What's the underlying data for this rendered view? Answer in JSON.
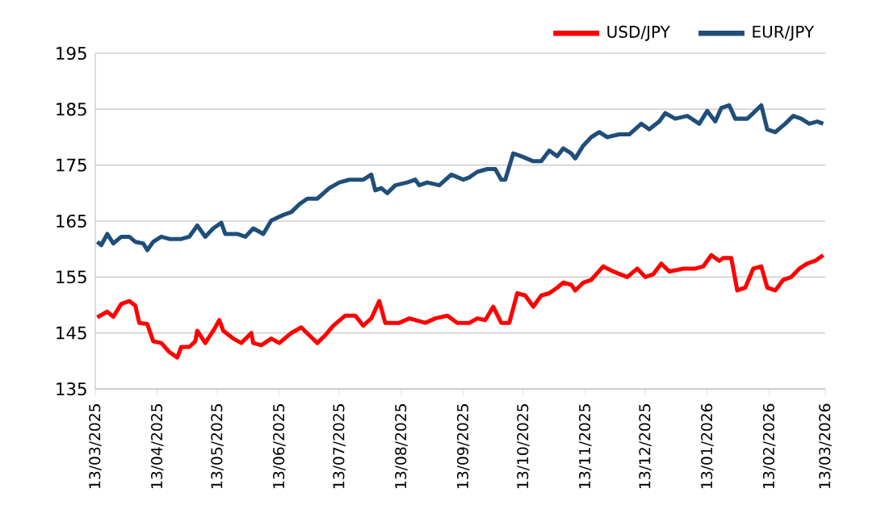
{
  "chart_data": {
    "type": "line",
    "xlim": [
      "2025-03-13",
      "2026-03-13"
    ],
    "xticks": [
      {
        "value": "2025-03-13",
        "label": "13/03/2025"
      },
      {
        "value": "2025-04-13",
        "label": "13/04/2025"
      },
      {
        "value": "2025-05-13",
        "label": "13/05/2025"
      },
      {
        "value": "2025-06-13",
        "label": "13/06/2025"
      },
      {
        "value": "2025-07-13",
        "label": "13/07/2025"
      },
      {
        "value": "2025-08-13",
        "label": "13/08/2025"
      },
      {
        "value": "2025-09-13",
        "label": "13/09/2025"
      },
      {
        "value": "2025-10-13",
        "label": "13/10/2025"
      },
      {
        "value": "2025-11-13",
        "label": "13/11/2025"
      },
      {
        "value": "2025-12-13",
        "label": "13/12/2025"
      },
      {
        "value": "2026-01-13",
        "label": "13/01/2026"
      },
      {
        "value": "2026-02-13",
        "label": "13/02/2026"
      },
      {
        "value": "2026-03-13",
        "label": "13/03/2026"
      }
    ],
    "ylim": [
      135,
      195
    ],
    "yticks": [
      135,
      145,
      155,
      165,
      175,
      185,
      195
    ],
    "grid": "y",
    "legend": "top right",
    "series": [
      {
        "name": "USD/JPY",
        "color": "#ff0000",
        "x": [
          "2025-03-14",
          "2025-03-19",
          "2025-03-22",
          "2025-03-26",
          "2025-03-30",
          "2025-04-02",
          "2025-04-04",
          "2025-04-08",
          "2025-04-11",
          "2025-04-15",
          "2025-04-19",
          "2025-04-23",
          "2025-04-25",
          "2025-04-29",
          "2025-05-02",
          "2025-05-03",
          "2025-05-07",
          "2025-05-11",
          "2025-05-14",
          "2025-05-16",
          "2025-05-21",
          "2025-05-25",
          "2025-05-30",
          "2025-05-31",
          "2025-06-04",
          "2025-06-09",
          "2025-06-13",
          "2025-06-19",
          "2025-06-24",
          "2025-06-28",
          "2025-07-02",
          "2025-07-06",
          "2025-07-10",
          "2025-07-16",
          "2025-07-21",
          "2025-07-25",
          "2025-07-29",
          "2025-08-02",
          "2025-08-05",
          "2025-08-12",
          "2025-08-17",
          "2025-08-25",
          "2025-08-30",
          "2025-09-05",
          "2025-09-10",
          "2025-09-16",
          "2025-09-20",
          "2025-09-24",
          "2025-09-28",
          "2025-10-02",
          "2025-10-06",
          "2025-10-10",
          "2025-10-14",
          "2025-10-18",
          "2025-10-22",
          "2025-10-26",
          "2025-10-30",
          "2025-11-02",
          "2025-11-06",
          "2025-11-08",
          "2025-11-12",
          "2025-11-16",
          "2025-11-22",
          "2025-11-27",
          "2025-12-04",
          "2025-12-09",
          "2025-12-13",
          "2025-12-17",
          "2025-12-21",
          "2025-12-25",
          "2026-01-01",
          "2026-01-07",
          "2026-01-11",
          "2026-01-15",
          "2026-01-19",
          "2026-01-21",
          "2026-01-25",
          "2026-01-28",
          "2026-02-01",
          "2026-02-05",
          "2026-02-09",
          "2026-02-12",
          "2026-02-16",
          "2026-02-20",
          "2026-02-24",
          "2026-02-28",
          "2026-03-04",
          "2026-03-08",
          "2026-03-12"
        ],
        "values": [
          147.8,
          148.8,
          147.9,
          150.2,
          150.7,
          149.9,
          146.8,
          146.6,
          143.5,
          143.2,
          141.6,
          140.6,
          142.5,
          142.5,
          143.5,
          145.4,
          143.2,
          145.4,
          147.3,
          145.4,
          144.0,
          143.2,
          145.0,
          143.2,
          142.8,
          144.0,
          143.2,
          145.0,
          146.0,
          144.6,
          143.2,
          144.6,
          146.3,
          148.1,
          148.1,
          146.3,
          147.6,
          150.7,
          146.8,
          146.8,
          147.6,
          146.8,
          147.6,
          148.1,
          146.8,
          146.8,
          147.6,
          147.3,
          149.7,
          146.8,
          146.8,
          152.1,
          151.7,
          149.7,
          151.7,
          152.1,
          153.1,
          154.0,
          153.6,
          152.6,
          154.0,
          154.5,
          156.9,
          156.0,
          155.0,
          156.5,
          155.0,
          155.5,
          157.4,
          156.0,
          156.5,
          156.5,
          156.9,
          158.9,
          157.9,
          158.4,
          158.4,
          152.6,
          153.1,
          156.5,
          156.9,
          153.1,
          152.6,
          154.5,
          155.0,
          156.5,
          157.4,
          157.9,
          158.9
        ]
      },
      {
        "name": "EUR/JPY",
        "color": "#1f4e79",
        "x": [
          "2025-03-14",
          "2025-03-16",
          "2025-03-19",
          "2025-03-22",
          "2025-03-26",
          "2025-03-30",
          "2025-04-02",
          "2025-04-06",
          "2025-04-08",
          "2025-04-11",
          "2025-04-15",
          "2025-04-19",
          "2025-04-25",
          "2025-04-29",
          "2025-05-03",
          "2025-05-07",
          "2025-05-11",
          "2025-05-15",
          "2025-05-17",
          "2025-05-23",
          "2025-05-27",
          "2025-05-31",
          "2025-06-05",
          "2025-06-09",
          "2025-06-15",
          "2025-06-19",
          "2025-06-23",
          "2025-06-27",
          "2025-07-02",
          "2025-07-08",
          "2025-07-13",
          "2025-07-18",
          "2025-07-25",
          "2025-07-29",
          "2025-07-31",
          "2025-08-03",
          "2025-08-06",
          "2025-08-10",
          "2025-08-16",
          "2025-08-20",
          "2025-08-22",
          "2025-08-26",
          "2025-09-01",
          "2025-09-07",
          "2025-09-13",
          "2025-09-16",
          "2025-09-20",
          "2025-09-25",
          "2025-09-29",
          "2025-10-02",
          "2025-10-04",
          "2025-10-08",
          "2025-10-12",
          "2025-10-18",
          "2025-10-22",
          "2025-10-26",
          "2025-10-30",
          "2025-11-02",
          "2025-11-06",
          "2025-11-08",
          "2025-11-12",
          "2025-11-16",
          "2025-11-20",
          "2025-11-24",
          "2025-11-30",
          "2025-12-05",
          "2025-12-11",
          "2025-12-15",
          "2025-12-20",
          "2025-12-23",
          "2025-12-28",
          "2026-01-03",
          "2026-01-09",
          "2026-01-13",
          "2026-01-17",
          "2026-01-20",
          "2026-01-24",
          "2026-01-27",
          "2026-02-02",
          "2026-02-05",
          "2026-02-09",
          "2026-02-12",
          "2026-02-16",
          "2026-02-21",
          "2026-02-25",
          "2026-03-01",
          "2026-03-05",
          "2026-03-09",
          "2026-03-12"
        ],
        "values": [
          161.3,
          160.7,
          162.7,
          161.0,
          162.2,
          162.2,
          161.3,
          161.0,
          159.8,
          161.3,
          162.2,
          161.8,
          161.8,
          162.2,
          164.2,
          162.2,
          163.7,
          164.7,
          162.7,
          162.7,
          162.2,
          163.7,
          162.7,
          165.1,
          166.1,
          166.6,
          168.0,
          169.0,
          169.0,
          170.9,
          171.9,
          172.4,
          172.4,
          173.3,
          170.5,
          170.9,
          170.0,
          171.4,
          171.9,
          172.4,
          171.4,
          171.9,
          171.4,
          173.3,
          172.4,
          172.8,
          173.8,
          174.3,
          174.3,
          172.4,
          172.4,
          177.1,
          176.6,
          175.7,
          175.7,
          177.6,
          176.6,
          178.0,
          177.1,
          176.2,
          178.5,
          180.0,
          180.9,
          180.0,
          180.5,
          180.5,
          182.4,
          181.4,
          182.8,
          184.3,
          183.3,
          183.8,
          182.4,
          184.7,
          182.8,
          185.2,
          185.7,
          183.3,
          183.3,
          184.3,
          185.7,
          181.4,
          180.9,
          182.4,
          183.8,
          183.3,
          182.4,
          182.8,
          182.4
        ]
      }
    ]
  }
}
